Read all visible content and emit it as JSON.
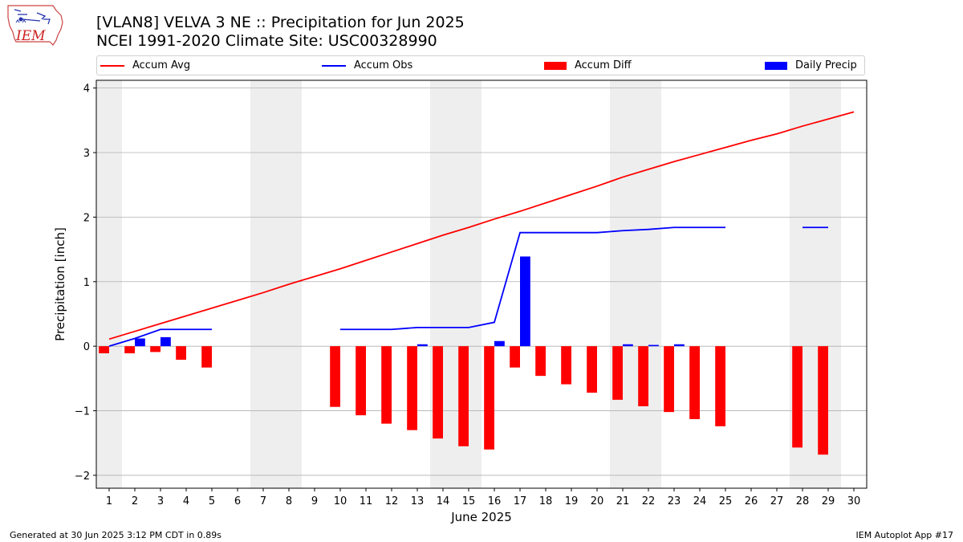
{
  "header": {
    "logo_text": "IEM",
    "title_line1": "[VLAN8] VELVA 3 NE :: Precipitation for Jun 2025",
    "title_line2": "NCEI 1991-2020 Climate Site: USC00328990"
  },
  "footer": {
    "generated": "Generated at 30 Jun 2025 3:12 PM CDT in 0.89s",
    "app": "IEM Autoplot App #17"
  },
  "colors": {
    "avg": "#ff0000",
    "obs": "#0000ff",
    "diff": "#ff0000",
    "precip": "#0000ff",
    "weekend": "#eeeeee",
    "grid": "#b0b0b0"
  },
  "chart_data": {
    "type": "bar",
    "xlabel": "June 2025",
    "ylabel": "Precipitation [inch]",
    "xlim": [
      0.5,
      30.5
    ],
    "ylim": [
      -2.2,
      4.12
    ],
    "grid": "horizontal",
    "legend_position": "top",
    "x": [
      1,
      2,
      3,
      4,
      5,
      6,
      7,
      8,
      9,
      10,
      11,
      12,
      13,
      14,
      15,
      16,
      17,
      18,
      19,
      20,
      21,
      22,
      23,
      24,
      25,
      26,
      27,
      28,
      29,
      30
    ],
    "xtick_labels": [
      "1",
      "2",
      "3",
      "4",
      "5",
      "6",
      "7",
      "8",
      "9",
      "10",
      "11",
      "12",
      "13",
      "14",
      "15",
      "16",
      "17",
      "18",
      "19",
      "20",
      "21",
      "22",
      "23",
      "24",
      "25",
      "26",
      "27",
      "28",
      "29",
      "30"
    ],
    "yticks": [
      -2,
      -1,
      0,
      1,
      2,
      3,
      4
    ],
    "ytick_labels": [
      "−2",
      "−1",
      "0",
      "1",
      "2",
      "3",
      "4"
    ],
    "weekend_spans": [
      [
        0.5,
        1.5
      ],
      [
        6.5,
        8.5
      ],
      [
        13.5,
        15.5
      ],
      [
        20.5,
        22.5
      ],
      [
        27.5,
        29.5
      ]
    ],
    "series": [
      {
        "name": "Accum Avg",
        "kind": "line",
        "values": [
          0.11,
          0.23,
          0.35,
          0.47,
          0.59,
          0.71,
          0.83,
          0.96,
          1.08,
          1.2,
          1.33,
          1.46,
          1.59,
          1.72,
          1.84,
          1.97,
          2.09,
          2.22,
          2.35,
          2.48,
          2.62,
          2.74,
          2.86,
          2.97,
          3.08,
          3.19,
          3.29,
          3.41,
          3.52,
          3.63
        ]
      },
      {
        "name": "Accum Obs",
        "kind": "line",
        "values": [
          0.0,
          0.12,
          0.26,
          0.26,
          0.26,
          null,
          null,
          null,
          null,
          0.26,
          0.26,
          0.26,
          0.29,
          0.29,
          0.29,
          0.37,
          1.76,
          1.76,
          1.76,
          1.76,
          1.79,
          1.81,
          1.84,
          1.84,
          1.84,
          null,
          null,
          1.84,
          1.84,
          null
        ]
      },
      {
        "name": "Accum Diff",
        "kind": "bar",
        "values": [
          -0.11,
          -0.11,
          -0.09,
          -0.21,
          -0.33,
          null,
          null,
          null,
          null,
          -0.94,
          -1.07,
          -1.2,
          -1.3,
          -1.43,
          -1.55,
          -1.6,
          -0.33,
          -0.46,
          -0.59,
          -0.72,
          -0.83,
          -0.93,
          -1.02,
          -1.13,
          -1.24,
          null,
          null,
          -1.57,
          -1.68,
          null
        ]
      },
      {
        "name": "Daily Precip",
        "kind": "bar",
        "values": [
          0.0,
          0.12,
          0.14,
          0.0,
          0.0,
          null,
          null,
          null,
          null,
          0.0,
          0.0,
          0.0,
          0.03,
          0.0,
          0.0,
          0.08,
          1.39,
          0.0,
          0.0,
          0.0,
          0.03,
          0.02,
          0.03,
          0.0,
          0.0,
          null,
          null,
          0.0,
          0.0,
          null
        ]
      }
    ]
  }
}
